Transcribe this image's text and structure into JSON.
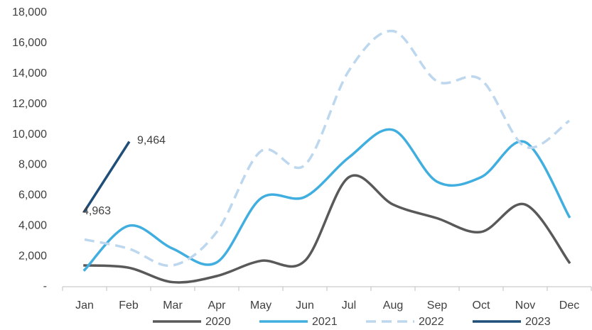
{
  "chart_data": {
    "type": "line",
    "categories": [
      "Jan",
      "Feb",
      "Mar",
      "Apr",
      "May",
      "Jun",
      "Jul",
      "Aug",
      "Sep",
      "Oct",
      "Nov",
      "Dec"
    ],
    "series": [
      {
        "name": "2020",
        "color": "#595959",
        "values": [
          1400,
          1250,
          300,
          700,
          1700,
          1700,
          7200,
          5400,
          4500,
          3600,
          5400,
          1600
        ]
      },
      {
        "name": "2021",
        "color": "#41aee0",
        "values": [
          1100,
          4000,
          2500,
          1600,
          5800,
          5900,
          8500,
          10300,
          6900,
          7200,
          9500,
          4600
        ]
      },
      {
        "name": "2022",
        "color": "#bdd7ee",
        "dashed": true,
        "values": [
          3100,
          2500,
          1400,
          3600,
          8900,
          8000,
          14200,
          16800,
          13500,
          13600,
          9200,
          10900
        ]
      },
      {
        "name": "2023",
        "color": "#1f4e79",
        "values": [
          4963,
          9464,
          null,
          null,
          null,
          null,
          null,
          null,
          null,
          null,
          null,
          null
        ],
        "value_labels": [
          "4,963",
          "9,464",
          null,
          null,
          null,
          null,
          null,
          null,
          null,
          null,
          null,
          null
        ]
      }
    ],
    "ylim": [
      0,
      18000
    ],
    "yticks": [
      {
        "value": 0,
        "label": "-"
      },
      {
        "value": 2000,
        "label": "2,000"
      },
      {
        "value": 4000,
        "label": "4,000"
      },
      {
        "value": 6000,
        "label": "6,000"
      },
      {
        "value": 8000,
        "label": "8,000"
      },
      {
        "value": 10000,
        "label": "10,000"
      },
      {
        "value": 12000,
        "label": "12,000"
      },
      {
        "value": 14000,
        "label": "14,000"
      },
      {
        "value": 16000,
        "label": "16,000"
      },
      {
        "value": 18000,
        "label": "18,000"
      }
    ],
    "grid": false,
    "smooth": true,
    "legend": "bottom"
  }
}
